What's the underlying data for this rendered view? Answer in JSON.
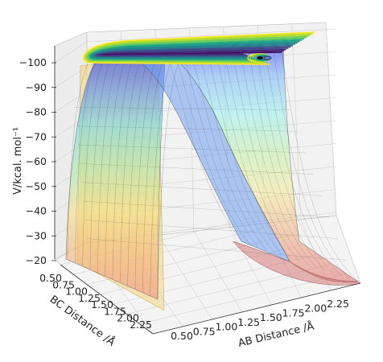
{
  "chart_data": {
    "type": "surface",
    "title": "",
    "xlabel": "AB Distance /Å",
    "ylabel": "BC Distance /Å",
    "zlabel": "V/kcal. mol⁻¹",
    "x_ticks": [
      "0.50",
      "0.75",
      "1.00",
      "1.25",
      "1.50",
      "1.75",
      "2.00",
      "2.25"
    ],
    "y_ticks": [
      "0.50",
      "0.75",
      "1.00",
      "1.25",
      "1.50",
      "1.75",
      "2.00",
      "2.25"
    ],
    "z_ticks": [
      "−100",
      "−90",
      "−80",
      "−70",
      "−60",
      "−50",
      "−40",
      "−30",
      "−20"
    ],
    "xlim": [
      0.5,
      2.25
    ],
    "ylim": [
      0.5,
      2.25
    ],
    "zlim": [
      -105,
      -20
    ],
    "grid": true,
    "colormap_surface": "jet",
    "colormap_contours": "viridis",
    "colors": {
      "pane": "#f2f2f2",
      "grid": "#d0d0d0",
      "curtain": "#f5d47a",
      "contour_low": "#440154",
      "contour_high": "#fde725"
    }
  }
}
